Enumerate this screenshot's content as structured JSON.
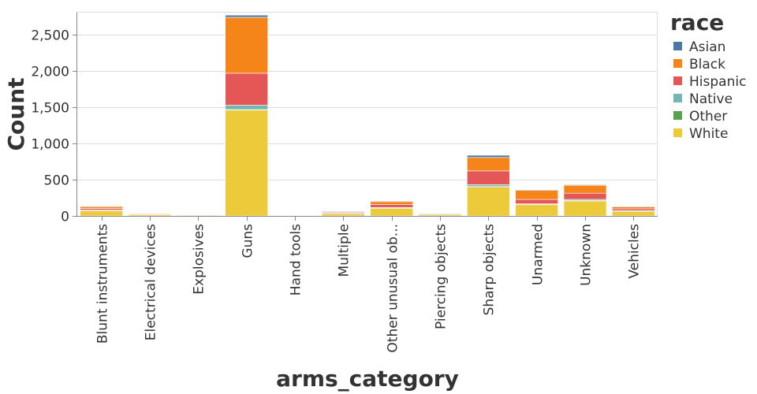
{
  "chart_data": {
    "type": "bar",
    "stacked": true,
    "xlabel": "arms_category",
    "ylabel": "Count",
    "ylim": [
      0,
      2800
    ],
    "yticks": [
      0,
      500,
      1000,
      1500,
      2000,
      2500
    ],
    "ytick_labels": [
      "0",
      "500",
      "1,000",
      "1,500",
      "2,000",
      "2,500"
    ],
    "grid": true,
    "legend": {
      "title": "race",
      "position": "right"
    },
    "categories": [
      "Blunt instruments",
      "Electrical devices",
      "Explosives",
      "Guns",
      "Hand tools",
      "Multiple",
      "Other unusual ob...",
      "Piercing objects",
      "Sharp objects",
      "Unarmed",
      "Unknown",
      "Vehicles"
    ],
    "series": [
      {
        "name": "White",
        "color": "#ECCA3A",
        "values": [
          78,
          20,
          6,
          1460,
          1,
          35,
          110,
          25,
          400,
          160,
          210,
          70
        ]
      },
      {
        "name": "Other",
        "color": "#58A14E",
        "values": [
          1,
          0,
          0,
          5,
          0,
          0,
          2,
          0,
          5,
          2,
          3,
          1
        ]
      },
      {
        "name": "Native",
        "color": "#72B7B2",
        "values": [
          2,
          0,
          0,
          60,
          0,
          2,
          5,
          1,
          25,
          5,
          15,
          2
        ]
      },
      {
        "name": "Hispanic",
        "color": "#E45756",
        "values": [
          22,
          4,
          1,
          440,
          0,
          10,
          40,
          5,
          190,
          60,
          85,
          25
        ]
      },
      {
        "name": "Black",
        "color": "#F58518",
        "values": [
          30,
          6,
          3,
          770,
          0,
          17,
          45,
          4,
          185,
          130,
          110,
          32
        ]
      },
      {
        "name": "Asian",
        "color": "#4C78A8",
        "values": [
          2,
          0,
          0,
          30,
          0,
          1,
          3,
          1,
          30,
          3,
          7,
          2
        ]
      }
    ],
    "legend_order": [
      "Asian",
      "Black",
      "Hispanic",
      "Native",
      "Other",
      "White"
    ]
  }
}
